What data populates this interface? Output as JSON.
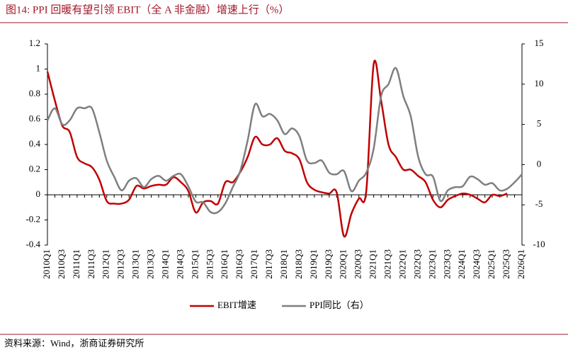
{
  "chart_data": {
    "type": "line",
    "title": "图14:  PPI 回暖有望引领 EBIT（全 A 非金融）增速上行（%）",
    "source": "资料来源：Wind，浙商证券研究所",
    "categories": [
      "2010Q1",
      null,
      "2010Q3",
      null,
      "2011Q1",
      null,
      "2011Q3",
      null,
      "2012Q1",
      null,
      "2012Q3",
      null,
      "2013Q1",
      null,
      "2013Q3",
      null,
      "2014Q1",
      null,
      "2014Q3",
      null,
      "2015Q1",
      null,
      "2015Q3",
      null,
      "2016Q1",
      null,
      "2016Q3",
      null,
      "2017Q1",
      null,
      "2017Q3",
      null,
      "2018Q1",
      null,
      "2018Q3",
      null,
      "2019Q1",
      null,
      "2019Q3",
      null,
      "2020Q1",
      null,
      "2020Q3",
      null,
      "2021Q1",
      null,
      "2021Q3",
      null,
      "2022Q1",
      null,
      "2022Q3",
      null,
      "2023Q1",
      null,
      "2023Q3",
      null,
      "2024Q1",
      null,
      "2024Q3",
      null,
      "2025Q1",
      null,
      "2025Q3",
      null,
      "2026Q1"
    ],
    "series": [
      {
        "name": "EBIT增速",
        "color": "#c00000",
        "values": [
          0.98,
          0.75,
          0.55,
          0.5,
          0.3,
          0.25,
          0.22,
          0.12,
          -0.05,
          -0.07,
          -0.07,
          -0.04,
          0.07,
          0.05,
          0.07,
          0.08,
          0.08,
          0.14,
          0.1,
          0.03,
          -0.14,
          -0.06,
          -0.05,
          -0.07,
          0.1,
          0.1,
          0.18,
          0.3,
          0.46,
          0.4,
          0.4,
          0.45,
          0.35,
          0.33,
          0.28,
          0.1,
          0.04,
          0.02,
          0.01,
          0.02,
          -0.33,
          -0.15,
          -0.03,
          0.03,
          1.04,
          0.75,
          0.4,
          0.3,
          0.2,
          0.2,
          0.15,
          0.1,
          -0.04,
          -0.1,
          -0.04,
          -0.01,
          0.01,
          0.0,
          -0.03,
          -0.06,
          0.0,
          -0.01,
          0.01,
          null,
          null
        ]
      },
      {
        "name": "PPI同比（右）",
        "color": "#7f7f7f",
        "axis": "y2",
        "values": [
          5.5,
          7,
          5,
          5.5,
          7,
          7,
          7,
          4,
          0.5,
          -1.5,
          -3.2,
          -2,
          -1.7,
          -2.8,
          -1.8,
          -1.4,
          -2,
          -1.4,
          -1.2,
          -2.7,
          -4.6,
          -4.7,
          -5.9,
          -5.9,
          -4.8,
          -2.8,
          -0.8,
          3,
          7.5,
          6,
          6.3,
          5.5,
          3.8,
          4.5,
          3.5,
          0.5,
          0.2,
          0.5,
          -1,
          -1.2,
          -0.8,
          -3.3,
          -2,
          -1,
          2,
          8.5,
          10,
          12,
          8.5,
          6,
          1,
          -1.2,
          -1.5,
          -4.5,
          -3.2,
          -2.8,
          -2.7,
          -1.5,
          -1.8,
          -2.5,
          -2.3,
          -3.2,
          -3,
          -2.2,
          -1.2
        ]
      }
    ],
    "ylim": [
      -0.4,
      1.2
    ],
    "yticks": [
      1.2,
      1,
      0.8,
      0.6,
      0.4,
      0.2,
      0,
      -0.2,
      -0.4
    ],
    "y2lim": [
      -10,
      15
    ],
    "y2ticks": [
      15,
      10,
      5,
      0,
      -5,
      -10
    ],
    "legend": "bottom"
  }
}
